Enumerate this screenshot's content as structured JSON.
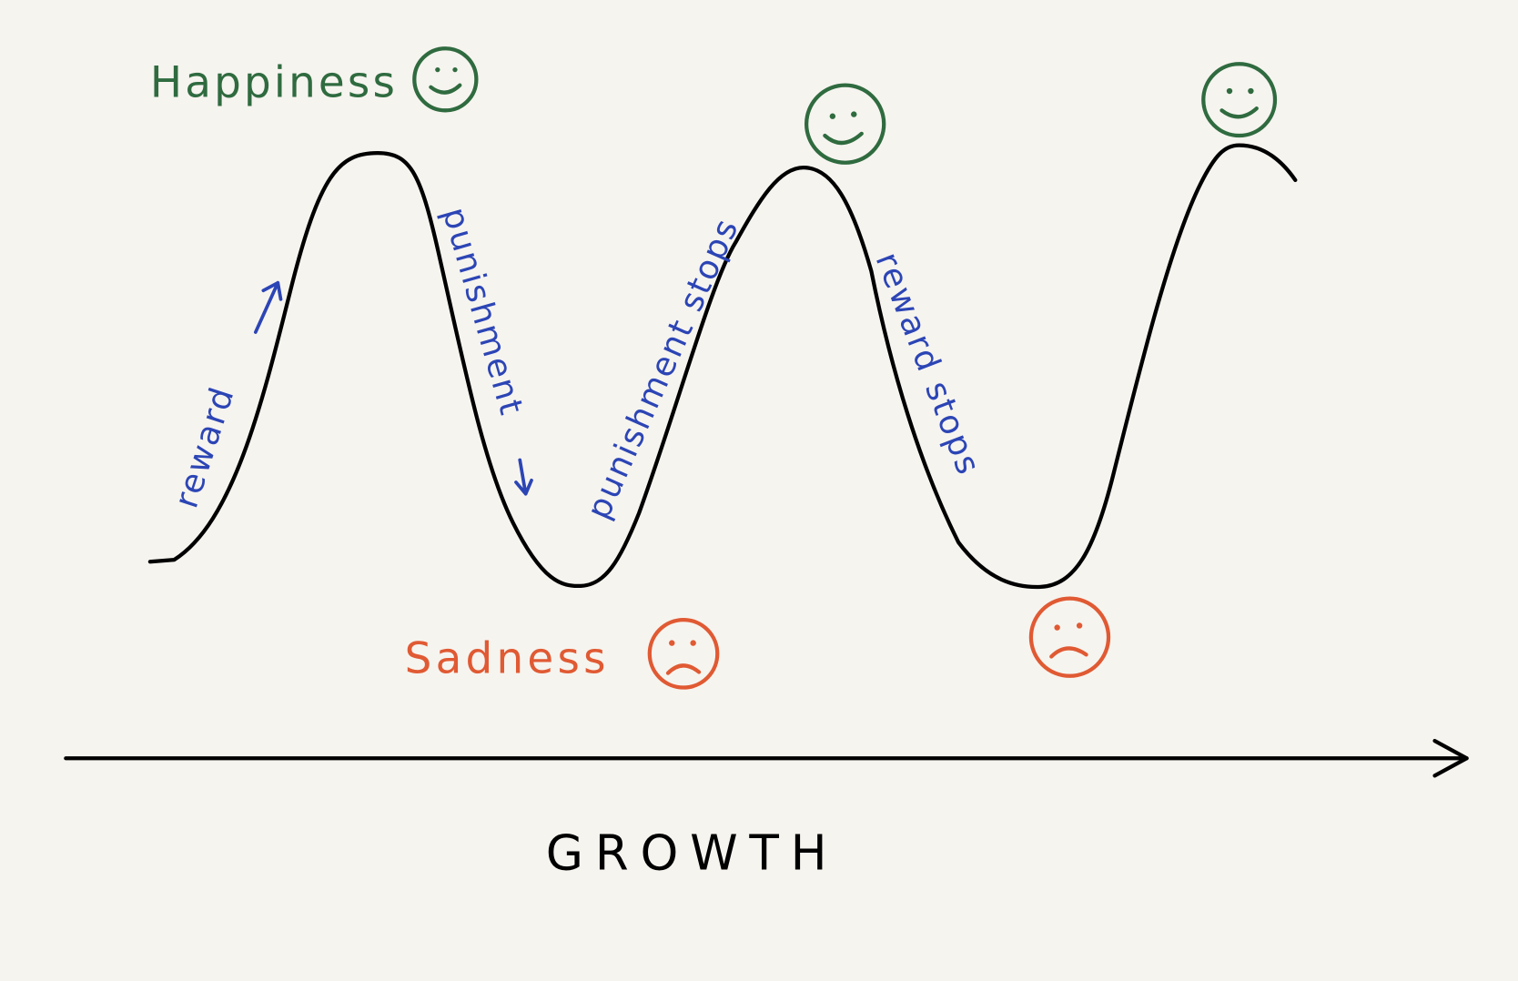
{
  "labels": {
    "happiness": "Happiness",
    "sadness": "Sadness"
  },
  "annotations": [
    "reward",
    "punishment",
    "punishment stops",
    "reward stops"
  ],
  "axis_label": "GROWTH"
}
